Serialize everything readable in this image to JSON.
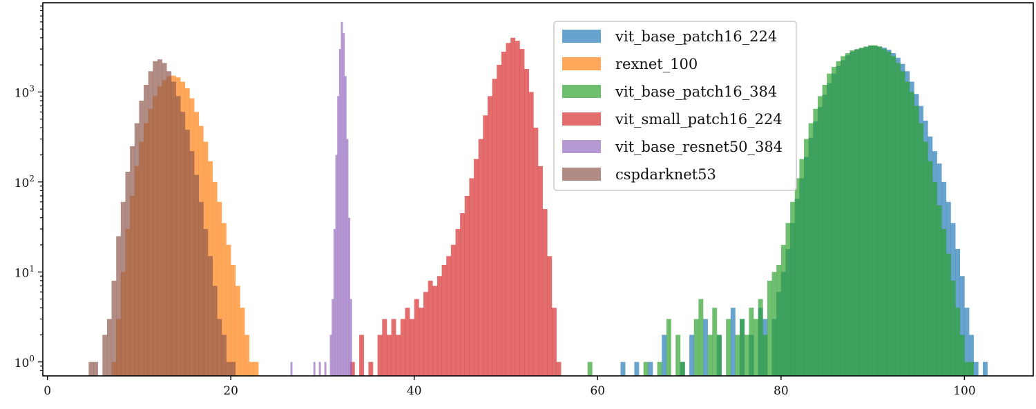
{
  "chart_data": {
    "type": "histogram",
    "title": "",
    "xlabel": "",
    "ylabel": "",
    "yscale": "log",
    "xlim": [
      -0.5,
      107.5
    ],
    "ylim": [
      0.7,
      9800
    ],
    "xticks": [
      0,
      20,
      40,
      60,
      80,
      100
    ],
    "xtick_labels": [
      "0",
      "20",
      "40",
      "60",
      "80",
      "100"
    ],
    "yticks": [
      1,
      10,
      100,
      1000
    ],
    "ytick_labels": [
      {
        "base": "10",
        "exp": "0"
      },
      {
        "base": "10",
        "exp": "1"
      },
      {
        "base": "10",
        "exp": "2"
      },
      {
        "base": "10",
        "exp": "3"
      }
    ],
    "legend_position": "top-center-right",
    "grid": false,
    "series": [
      {
        "name": "vit_base_patch16_224",
        "color": "#1f77b4",
        "bin_width": 0.5,
        "bins": [
          [
            62.5,
            1
          ],
          [
            64,
            1
          ],
          [
            65.5,
            1
          ],
          [
            67,
            2
          ],
          [
            69,
            1
          ],
          [
            70,
            2
          ],
          [
            71.5,
            3
          ],
          [
            73,
            2
          ],
          [
            74.5,
            4
          ],
          [
            75.5,
            3
          ],
          [
            76.5,
            2
          ],
          [
            77.5,
            4
          ],
          [
            78,
            3
          ],
          [
            79,
            3
          ],
          [
            79.5,
            6
          ],
          [
            80,
            10
          ],
          [
            80.5,
            18
          ],
          [
            81,
            35
          ],
          [
            81.5,
            65
          ],
          [
            82,
            110
          ],
          [
            82.5,
            190
          ],
          [
            83,
            310
          ],
          [
            83.5,
            470
          ],
          [
            84,
            680
          ],
          [
            84.5,
            930
          ],
          [
            85,
            1250
          ],
          [
            85.5,
            1600
          ],
          [
            86,
            1950
          ],
          [
            86.5,
            2250
          ],
          [
            87,
            2550
          ],
          [
            87.5,
            2800
          ],
          [
            88,
            2950
          ],
          [
            88.5,
            3050
          ],
          [
            89,
            3150
          ],
          [
            89.5,
            3250
          ],
          [
            90,
            3250
          ],
          [
            90.5,
            3200
          ],
          [
            91,
            3100
          ],
          [
            91.5,
            2950
          ],
          [
            92,
            2700
          ],
          [
            92.5,
            2400
          ],
          [
            93,
            2050
          ],
          [
            93.5,
            1700
          ],
          [
            94,
            1300
          ],
          [
            94.5,
            950
          ],
          [
            95,
            700
          ],
          [
            95.5,
            480
          ],
          [
            96,
            320
          ],
          [
            96.5,
            220
          ],
          [
            97,
            160
          ],
          [
            97.5,
            100
          ],
          [
            98,
            60
          ],
          [
            98.5,
            35
          ],
          [
            99,
            18
          ],
          [
            99.5,
            9
          ],
          [
            100,
            4
          ],
          [
            100.5,
            2
          ],
          [
            101,
            1
          ],
          [
            102,
            1
          ]
        ]
      },
      {
        "name": "rexnet_100",
        "color": "#ff7f0e",
        "bin_width": 0.5,
        "bins": [
          [
            7,
            1
          ],
          [
            7.5,
            3
          ],
          [
            8,
            10
          ],
          [
            8.5,
            30
          ],
          [
            9,
            70
          ],
          [
            9.5,
            150
          ],
          [
            10,
            280
          ],
          [
            10.5,
            450
          ],
          [
            11,
            650
          ],
          [
            11.5,
            900
          ],
          [
            12,
            1150
          ],
          [
            12.5,
            1350
          ],
          [
            13,
            1500
          ],
          [
            13.5,
            1520
          ],
          [
            14,
            1450
          ],
          [
            14.5,
            1300
          ],
          [
            15,
            1100
          ],
          [
            15.5,
            850
          ],
          [
            16,
            600
          ],
          [
            16.5,
            420
          ],
          [
            17,
            280
          ],
          [
            17.5,
            170
          ],
          [
            18,
            100
          ],
          [
            18.5,
            60
          ],
          [
            19,
            35
          ],
          [
            19.5,
            20
          ],
          [
            20,
            12
          ],
          [
            20.5,
            7
          ],
          [
            21,
            4
          ],
          [
            21.5,
            2
          ],
          [
            22,
            1
          ],
          [
            22.5,
            1
          ]
        ]
      },
      {
        "name": "vit_base_patch16_384",
        "color": "#2ca02c",
        "bin_width": 0.5,
        "bins": [
          [
            58.9,
            1
          ],
          [
            65,
            1
          ],
          [
            66.5,
            1
          ],
          [
            67.5,
            3
          ],
          [
            68.5,
            2
          ],
          [
            69,
            1
          ],
          [
            70.5,
            3
          ],
          [
            71,
            5
          ],
          [
            72,
            2
          ],
          [
            72.5,
            4
          ],
          [
            73,
            2
          ],
          [
            74,
            3
          ],
          [
            75,
            2
          ],
          [
            75.5,
            3
          ],
          [
            76,
            2
          ],
          [
            76.5,
            4
          ],
          [
            77,
            3
          ],
          [
            77.5,
            5
          ],
          [
            78,
            2
          ],
          [
            78.5,
            8
          ],
          [
            79,
            10
          ],
          [
            79.5,
            12
          ],
          [
            80,
            20
          ],
          [
            80.5,
            35
          ],
          [
            81,
            60
          ],
          [
            81.5,
            110
          ],
          [
            82,
            180
          ],
          [
            82.5,
            300
          ],
          [
            83,
            450
          ],
          [
            83.5,
            650
          ],
          [
            84,
            900
          ],
          [
            84.5,
            1200
          ],
          [
            85,
            1600
          ],
          [
            85.5,
            1900
          ],
          [
            86,
            2200
          ],
          [
            86.5,
            2500
          ],
          [
            87,
            2700
          ],
          [
            87.5,
            2900
          ],
          [
            88,
            3000
          ],
          [
            88.5,
            3100
          ],
          [
            89,
            3200
          ],
          [
            89.5,
            3300
          ],
          [
            90,
            3300
          ],
          [
            90.5,
            3200
          ],
          [
            91,
            3000
          ],
          [
            91.5,
            2800
          ],
          [
            92,
            2500
          ],
          [
            92.5,
            2100
          ],
          [
            93,
            1700
          ],
          [
            93.5,
            1300
          ],
          [
            94,
            1000
          ],
          [
            94.5,
            700
          ],
          [
            95,
            450
          ],
          [
            95.5,
            280
          ],
          [
            96,
            170
          ],
          [
            96.5,
            100
          ],
          [
            97,
            55
          ],
          [
            97.5,
            30
          ],
          [
            98,
            16
          ],
          [
            98.5,
            8
          ],
          [
            99,
            4
          ],
          [
            99.5,
            2
          ],
          [
            100,
            1
          ],
          [
            100.5,
            1
          ]
        ]
      },
      {
        "name": "vit_small_patch16_224",
        "color": "#d62728",
        "bin_width": 0.5,
        "bins": [
          [
            33,
            1
          ],
          [
            34,
            2
          ],
          [
            35,
            1
          ],
          [
            36,
            2
          ],
          [
            36.5,
            3
          ],
          [
            37,
            2
          ],
          [
            37.5,
            3
          ],
          [
            38,
            2
          ],
          [
            38.5,
            3
          ],
          [
            39,
            4
          ],
          [
            39.5,
            3
          ],
          [
            40,
            5
          ],
          [
            40.5,
            4
          ],
          [
            41,
            6
          ],
          [
            41.5,
            8
          ],
          [
            42,
            7
          ],
          [
            42.5,
            9
          ],
          [
            43,
            12
          ],
          [
            43.5,
            15
          ],
          [
            44,
            20
          ],
          [
            44.5,
            30
          ],
          [
            45,
            45
          ],
          [
            45.5,
            70
          ],
          [
            46,
            110
          ],
          [
            46.5,
            180
          ],
          [
            47,
            300
          ],
          [
            47.5,
            550
          ],
          [
            48,
            900
          ],
          [
            48.5,
            1400
          ],
          [
            49,
            2000
          ],
          [
            49.5,
            2800
          ],
          [
            50,
            3500
          ],
          [
            50.5,
            4000
          ],
          [
            51,
            3700
          ],
          [
            51.5,
            3000
          ],
          [
            52,
            1800
          ],
          [
            52.5,
            1000
          ],
          [
            53,
            400
          ],
          [
            53.5,
            150
          ],
          [
            54,
            50
          ],
          [
            54.5,
            15
          ],
          [
            55,
            4
          ],
          [
            55.5,
            1
          ]
        ]
      },
      {
        "name": "vit_base_resnet50_384",
        "color": "#9467bd",
        "bin_width": 0.2,
        "bins": [
          [
            26.5,
            1
          ],
          [
            29,
            1
          ],
          [
            29.6,
            1
          ],
          [
            30.2,
            1
          ],
          [
            30.8,
            2
          ],
          [
            31,
            5
          ],
          [
            31.2,
            30
          ],
          [
            31.4,
            200
          ],
          [
            31.6,
            900
          ],
          [
            31.8,
            3000
          ],
          [
            32,
            6000
          ],
          [
            32.2,
            4500
          ],
          [
            32.4,
            1500
          ],
          [
            32.6,
            300
          ],
          [
            32.8,
            40
          ],
          [
            33,
            5
          ]
        ]
      },
      {
        "name": "cspdarknet53",
        "color": "#8c564b",
        "bin_width": 0.5,
        "bins": [
          [
            4.5,
            1
          ],
          [
            5,
            1
          ],
          [
            6,
            2
          ],
          [
            6.5,
            3
          ],
          [
            7,
            8
          ],
          [
            7.5,
            25
          ],
          [
            8,
            60
          ],
          [
            8.5,
            130
          ],
          [
            9,
            250
          ],
          [
            9.5,
            450
          ],
          [
            10,
            800
          ],
          [
            10.5,
            1200
          ],
          [
            11,
            1700
          ],
          [
            11.5,
            2200
          ],
          [
            12,
            2300
          ],
          [
            12.5,
            2100
          ],
          [
            13,
            1700
          ],
          [
            13.5,
            1300
          ],
          [
            14,
            900
          ],
          [
            14.5,
            600
          ],
          [
            15,
            380
          ],
          [
            15.5,
            220
          ],
          [
            16,
            120
          ],
          [
            16.5,
            60
          ],
          [
            17,
            30
          ],
          [
            17.5,
            15
          ],
          [
            18,
            7
          ],
          [
            18.5,
            3
          ],
          [
            19,
            2
          ],
          [
            19.5,
            1
          ],
          [
            20,
            1
          ]
        ]
      }
    ]
  }
}
